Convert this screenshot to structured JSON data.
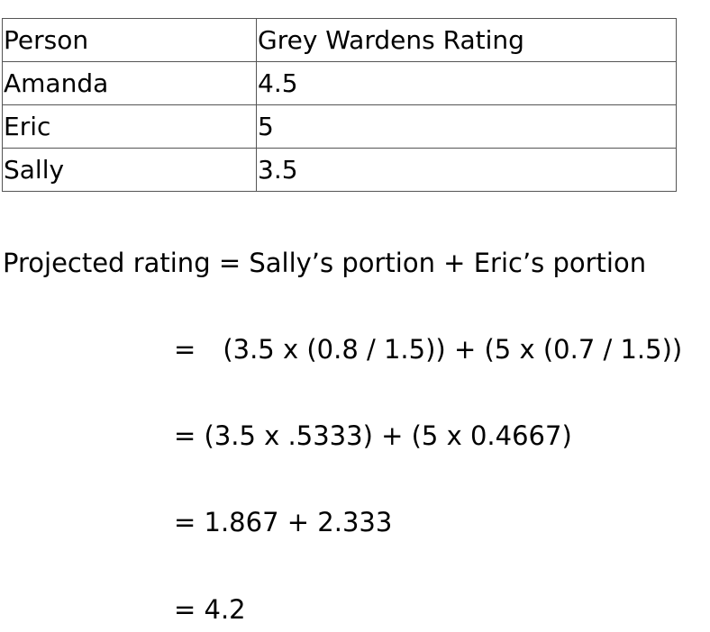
{
  "table": {
    "headers": [
      "Person",
      "Grey Wardens Rating"
    ],
    "rows": [
      {
        "person": "Amanda",
        "rating": "4.5"
      },
      {
        "person": "Eric",
        "rating": "5"
      },
      {
        "person": "Sally",
        "rating": "3.5"
      }
    ]
  },
  "formula": {
    "heading": "Projected rating = Sally’s portion + Eric’s portion",
    "step1_eq": "=",
    "step1_expr": "(3.5 x (0.8 / 1.5)) + (5 x (0.7 / 1.5))",
    "step2": "= (3.5 x .5333) + (5 x 0.4667)",
    "step3": "= 1.867 + 2.333",
    "step4": "= 4.2"
  }
}
